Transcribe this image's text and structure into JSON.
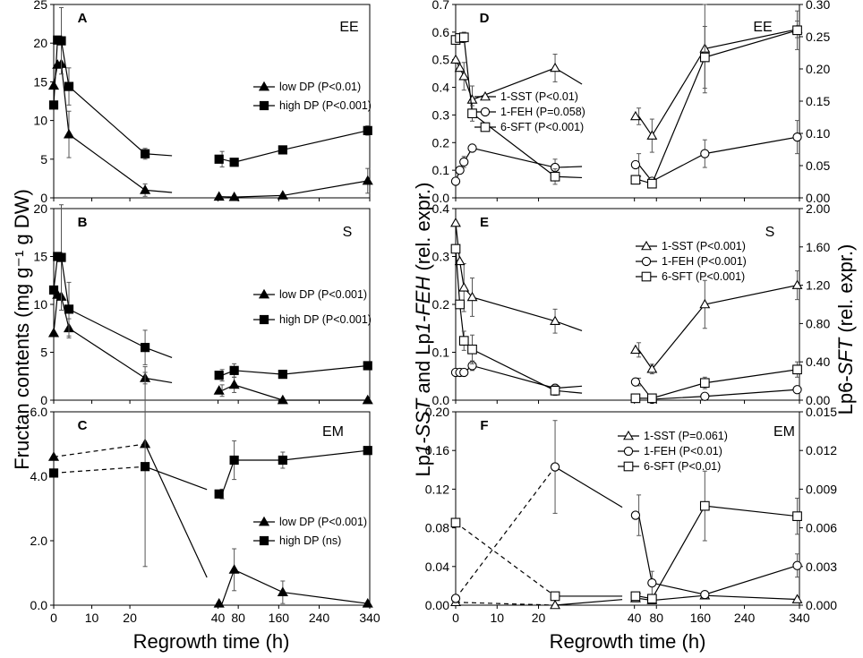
{
  "figure": {
    "left_ylabel": "Fructan contents (mg g⁻¹ g DW)",
    "middle_ylabel_parts": [
      "Lp",
      "1-SST",
      " and Lp",
      "1-FEH",
      " (rel. expr.)"
    ],
    "right_ylabel_parts": [
      "Lp6-",
      "SFT",
      " (rel. expr.)"
    ],
    "left_xlabel": "Regrowth time (h)",
    "right_xlabel": "Regrowth time (h)",
    "x_ticks": [
      "0",
      "10",
      "20",
      "40",
      "80",
      "160",
      "240",
      "340"
    ]
  },
  "chart_data": [
    {
      "id": "A",
      "type": "line",
      "label": "A",
      "condition": "EE",
      "ylim": [
        0,
        25
      ],
      "y_ticks": [
        "0",
        "5",
        "10",
        "15",
        "20",
        "25"
      ],
      "x_phase1": [
        0,
        1,
        2,
        4,
        24
      ],
      "x_phase2": [
        42,
        48,
        72,
        168,
        336
      ],
      "series": [
        {
          "name": "low DP",
          "legend": "low DP (P<0.01)",
          "marker": "filled-triangle",
          "phase1": [
            14.5,
            17.2,
            17.3,
            8.2,
            1.0
          ],
          "phase1_err": [
            0,
            0,
            0,
            3.0,
            0.8
          ],
          "phase2": [
            0.15,
            0.15,
            0.1,
            0.3,
            2.2
          ],
          "phase2_err": [
            0,
            0,
            0,
            0,
            1.6
          ]
        },
        {
          "name": "high DP",
          "legend": "high DP (P<0.001)",
          "marker": "filled-square",
          "phase1": [
            12.0,
            20.4,
            20.3,
            14.4,
            5.7
          ],
          "phase1_err": [
            0,
            0,
            4.3,
            2.4,
            0.7
          ],
          "phase2": [
            5.0,
            5.0,
            4.6,
            6.2,
            8.7
          ],
          "phase2_err": [
            0,
            1.0,
            0,
            0,
            0.6
          ]
        }
      ]
    },
    {
      "id": "B",
      "type": "line",
      "label": "B",
      "condition": "S",
      "ylim": [
        0,
        20
      ],
      "y_ticks": [
        "0",
        "5",
        "10",
        "15",
        "20"
      ],
      "x_phase1": [
        0,
        1,
        2,
        4,
        24
      ],
      "x_phase2": [
        42,
        48,
        72,
        168,
        336
      ],
      "series": [
        {
          "name": "low DP",
          "legend": "low DP (P<0.001)",
          "marker": "filled-triangle",
          "phase1": [
            7.0,
            11.0,
            10.8,
            7.5,
            2.3
          ],
          "phase1_err": [
            0,
            0,
            0,
            1.0,
            0.6
          ],
          "phase2": [
            1.0,
            1.0,
            1.6,
            0.0,
            0.0
          ],
          "phase2_err": [
            0,
            0.6,
            0.8,
            0,
            0
          ]
        },
        {
          "name": "high DP",
          "legend": "high DP (P<0.001)",
          "marker": "filled-square",
          "phase1": [
            11.5,
            15.0,
            14.9,
            9.5,
            5.5
          ],
          "phase1_err": [
            0,
            0,
            5.5,
            2.8,
            1.8
          ],
          "phase2": [
            2.6,
            2.6,
            3.1,
            2.7,
            3.6
          ],
          "phase2_err": [
            0,
            0.6,
            0.7,
            0,
            0
          ]
        }
      ]
    },
    {
      "id": "C",
      "type": "line",
      "label": "C",
      "condition": "EM",
      "ylim": [
        0,
        6
      ],
      "y_ticks": [
        "0.0",
        "2.0",
        "4.0",
        "6.0"
      ],
      "x_phase1": [
        0,
        24
      ],
      "x_phase2": [
        42,
        48,
        72,
        168,
        336
      ],
      "series": [
        {
          "name": "low DP",
          "legend": "low DP (P<0.001)",
          "marker": "filled-triangle",
          "phase1": [
            4.6,
            5.0
          ],
          "phase1_err": [
            0,
            0
          ],
          "phase2": [
            0.05,
            0.05,
            1.1,
            0.4,
            0.05
          ],
          "phase2_err": [
            0,
            0,
            0.65,
            0.35,
            0
          ]
        },
        {
          "name": "high DP",
          "legend": "high DP (ns)",
          "marker": "filled-square",
          "phase1": [
            4.1,
            4.3
          ],
          "phase1_err": [
            0,
            3.1
          ],
          "phase2": [
            3.45,
            3.45,
            4.5,
            4.5,
            4.8
          ],
          "phase2_err": [
            0,
            0.15,
            0.6,
            0.25,
            0
          ]
        }
      ]
    },
    {
      "id": "D",
      "type": "line",
      "label": "D",
      "condition": "EE",
      "ylim": [
        0,
        0.7
      ],
      "y_ticks": [
        "0.0",
        "0.1",
        "0.2",
        "0.3",
        "0.4",
        "0.5",
        "0.6",
        "0.7"
      ],
      "y2lim": [
        0,
        0.3
      ],
      "y2_ticks": [
        "0.00",
        "0.05",
        "0.10",
        "0.15",
        "0.20",
        "0.25",
        "0.30"
      ],
      "x_phase1": [
        0,
        1,
        2,
        4,
        24
      ],
      "x_phase2": [
        42,
        48,
        72,
        168,
        336
      ],
      "series": [
        {
          "name": "1-SST",
          "legend": "1-SST (P<0.01)",
          "marker": "open-triangle",
          "axis": "left",
          "phase1": [
            0.5,
            0.47,
            0.44,
            0.355,
            0.47
          ],
          "phase1_err": [
            0,
            0,
            0.05,
            0.05,
            0.05
          ],
          "phase2": [
            0.295,
            0.295,
            0.225,
            0.54,
            0.61
          ],
          "phase2_err": [
            0,
            0.03,
            0.06,
            0.16,
            0.03
          ]
        },
        {
          "name": "1-FEH",
          "legend": "1-FEH (P=0.058)",
          "marker": "open-circle",
          "axis": "left",
          "phase1": [
            0.06,
            0.1,
            0.13,
            0.18,
            0.11
          ],
          "phase1_err": [
            0,
            0,
            0.02,
            0.01,
            0.03
          ],
          "phase2": [
            0.12,
            0.12,
            0.06,
            0.16,
            0.22
          ],
          "phase2_err": [
            0,
            0.04,
            0.01,
            0.05,
            0.06
          ]
        },
        {
          "name": "6-SFT",
          "legend": "6-SFT (P<0.001)",
          "marker": "open-square",
          "axis": "right",
          "phase1": [
            0.245,
            0.248,
            0.249,
            0.131,
            0.033
          ],
          "phase1_err": [
            0,
            0,
            0.008,
            0.012,
            0.012
          ],
          "phase2": [
            0.028,
            0.028,
            0.022,
            0.218,
            0.26
          ],
          "phase2_err": [
            0,
            0.005,
            0.003,
            0.048,
            0.03
          ]
        }
      ]
    },
    {
      "id": "E",
      "type": "line",
      "label": "E",
      "condition": "S",
      "ylim": [
        0,
        0.4
      ],
      "y_ticks": [
        "0.0",
        "0.1",
        "0.2",
        "0.3",
        "0.4"
      ],
      "y2lim": [
        0,
        2.0
      ],
      "y2_ticks": [
        "0.00",
        "0.40",
        "0.80",
        "1.20",
        "1.60",
        "2.00"
      ],
      "x_phase1": [
        0,
        1,
        2,
        4,
        24
      ],
      "x_phase2": [
        42,
        48,
        72,
        168,
        336
      ],
      "series": [
        {
          "name": "1-SST",
          "legend": "1-SST (P<0.001)",
          "marker": "open-triangle",
          "axis": "left",
          "phase1": [
            0.37,
            0.29,
            0.235,
            0.215,
            0.165
          ],
          "phase1_err": [
            0,
            0,
            0.05,
            0.04,
            0.025
          ],
          "phase2": [
            0.105,
            0.105,
            0.065,
            0.2,
            0.24
          ],
          "phase2_err": [
            0,
            0.015,
            0.01,
            0.05,
            0.03
          ]
        },
        {
          "name": "1-FEH",
          "legend": "1-FEH (P<0.001)",
          "marker": "open-circle",
          "axis": "left",
          "phase1": [
            0.058,
            0.058,
            0.058,
            0.072,
            0.025
          ],
          "phase1_err": [
            0,
            0,
            0,
            0.01,
            0.008
          ],
          "phase2": [
            0.038,
            0.038,
            0.002,
            0.008,
            0.022
          ],
          "phase2_err": [
            0,
            0.008,
            0,
            0,
            0
          ]
        },
        {
          "name": "6-SFT",
          "legend": "6-SFT (P<0.001)",
          "marker": "open-square",
          "axis": "right",
          "phase1": [
            1.58,
            1.0,
            0.62,
            0.53,
            0.1
          ],
          "phase1_err": [
            0,
            0,
            0.1,
            0.15,
            0.05
          ],
          "phase2": [
            0.02,
            0.02,
            0.02,
            0.18,
            0.32
          ],
          "phase2_err": [
            0,
            0,
            0,
            0.06,
            0.08
          ]
        }
      ]
    },
    {
      "id": "F",
      "type": "line",
      "label": "F",
      "condition": "EM",
      "ylim": [
        0,
        0.2
      ],
      "y_ticks": [
        "0.00",
        "0.04",
        "0.08",
        "0.12",
        "0.16",
        "0.20"
      ],
      "y2lim": [
        0,
        0.015
      ],
      "y2_ticks": [
        "0.000",
        "0.003",
        "0.006",
        "0.009",
        "0.012",
        "0.015"
      ],
      "x_phase1": [
        0,
        24
      ],
      "x_phase2": [
        42,
        48,
        72,
        168,
        336
      ],
      "series": [
        {
          "name": "1-SST",
          "legend": "1-SST (P=0.061)",
          "marker": "open-triangle",
          "axis": "left",
          "phase1": [
            0.003,
            0.0
          ],
          "phase1_err": [
            0,
            0
          ],
          "phase2": [
            0.007,
            0.007,
            0.005,
            0.01,
            0.006
          ],
          "phase2_err": [
            0,
            0,
            0,
            0,
            0
          ]
        },
        {
          "name": "1-FEH",
          "legend": "1-FEH (P<0.01)",
          "marker": "open-circle",
          "axis": "left",
          "phase1": [
            0.007,
            0.143
          ],
          "phase1_err": [
            0,
            0.048
          ],
          "phase2": [
            0.093,
            0.093,
            0.023,
            0.011,
            0.041
          ],
          "phase2_err": [
            0,
            0.021,
            0.012,
            0,
            0.012
          ]
        },
        {
          "name": "6-SFT",
          "legend": "6-SFT (P<0.01)",
          "marker": "open-square",
          "axis": "right",
          "phase1": [
            0.0064,
            0.0007
          ],
          "phase1_err": [
            0,
            0
          ],
          "phase2": [
            0.0007,
            0.0007,
            0.0005,
            0.0077,
            0.0069
          ],
          "phase2_err": [
            0,
            0.0002,
            0.0002,
            0.0027,
            0.0014
          ]
        }
      ]
    }
  ]
}
